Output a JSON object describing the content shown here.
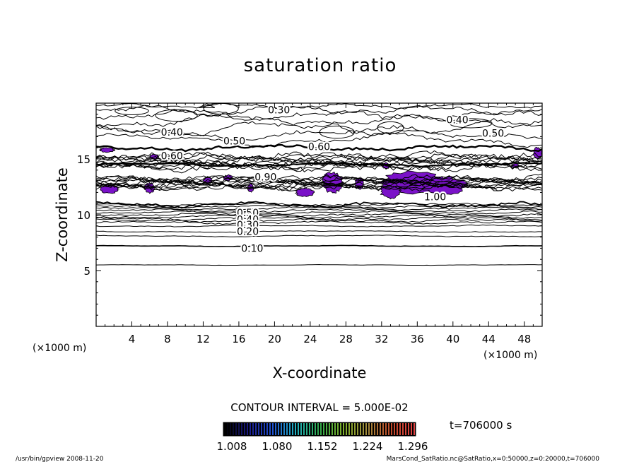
{
  "chart_data": {
    "type": "contour",
    "title": "saturation ratio",
    "xlabel": "X-coordinate",
    "ylabel": "Z-coordinate",
    "x_unit": "(×1000 m)",
    "z_unit": "(×1000 m)",
    "xlim": [
      0,
      50
    ],
    "ylim": [
      0,
      20
    ],
    "x_ticks": [
      "4",
      "8",
      "12",
      "16",
      "20",
      "24",
      "28",
      "32",
      "36",
      "40",
      "44",
      "48"
    ],
    "y_ticks": [
      "5",
      "10",
      "15"
    ],
    "contour_labels": [
      {
        "text": "0.30",
        "x": 20.5,
        "z": 19.4
      },
      {
        "text": "0.40",
        "x": 8.5,
        "z": 17.4
      },
      {
        "text": "0.50",
        "x": 15.5,
        "z": 16.6
      },
      {
        "text": "0.60",
        "x": 25,
        "z": 16.1
      },
      {
        "text": "0.40",
        "x": 40.5,
        "z": 18.5
      },
      {
        "text": "0.50",
        "x": 44.5,
        "z": 17.3
      },
      {
        "text": "0.60",
        "x": 8.5,
        "z": 15.3
      },
      {
        "text": "0.90",
        "x": 19,
        "z": 13.4
      },
      {
        "text": "1.00",
        "x": 38,
        "z": 11.6
      },
      {
        "text": "0.50",
        "x": 17,
        "z": 10.2
      },
      {
        "text": "0.40",
        "x": 17,
        "z": 9.6
      },
      {
        "text": "0.30",
        "x": 17,
        "z": 9.1
      },
      {
        "text": "0.20",
        "x": 17,
        "z": 8.5
      },
      {
        "text": "0.10",
        "x": 17.5,
        "z": 7.0
      }
    ],
    "contour_interval": "CONTOUR INTERVAL = 5.000E-02",
    "shading_legend": [
      "1.008",
      "1.080",
      "1.152",
      "1.224",
      "1.296"
    ],
    "time_label": "t=706000 s",
    "supersaturated_color": "#7a12c8",
    "colorbar_colors": [
      "#000000",
      "#1a1a8a",
      "#1f4fd0",
      "#1fb0c0",
      "#2fa84a",
      "#7fb02a",
      "#a08a3a",
      "#c04a2a",
      "#e04040"
    ]
  },
  "footer": {
    "left": "/usr/bin/gpview   2008-11-20",
    "right": "MarsCond_SatRatio.nc@SatRatio,x=0:50000,z=0:20000,t=706000"
  }
}
